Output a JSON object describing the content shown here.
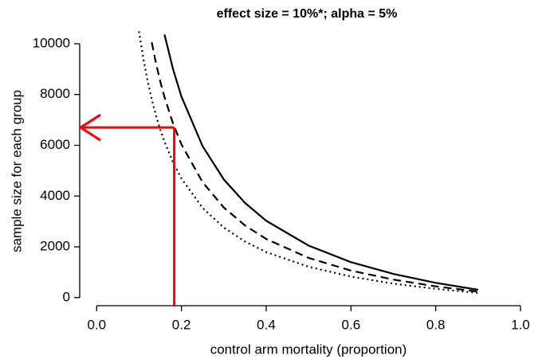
{
  "chart_data": {
    "type": "line",
    "title": "effect size = 10%*; alpha = 5%",
    "xlabel": "control arm mortality (proportion)",
    "ylabel": "sample size for each group",
    "xlim": [
      -0.04,
      1.03
    ],
    "ylim": [
      -350,
      10500
    ],
    "xticks": [
      {
        "value": 0,
        "label": "0.0"
      },
      0.2,
      0.4,
      0.6,
      0.8,
      {
        "value": 1,
        "label": "1.0"
      }
    ],
    "yticks": [
      0,
      2000,
      4000,
      6000,
      8000,
      10000
    ],
    "series": [
      {
        "color": "#000000",
        "linestyle": "solid",
        "x": [
          0.16,
          0.18,
          0.2,
          0.25,
          0.3,
          0.35,
          0.4,
          0.5,
          0.6,
          0.7,
          0.8,
          0.9
        ],
        "values": [
          10362,
          9013,
          7921,
          5964,
          4656,
          3729,
          3028,
          2050,
          1398,
          931,
          582,
          310
        ]
      },
      {
        "color": "#000000",
        "linestyle": "dashed",
        "x": [
          0.13,
          0.14,
          0.15,
          0.16,
          0.18,
          0.2,
          0.25,
          0.3,
          0.35,
          0.4,
          0.5,
          0.6,
          0.7,
          0.8,
          0.9
        ],
        "values": [
          10056,
          9232,
          8525,
          7897,
          6869,
          6037,
          4545,
          3548,
          2842,
          2308,
          1562,
          1065,
          710,
          444,
          236
        ]
      },
      {
        "color": "#000000",
        "linestyle": "dotted",
        "x": [
          0.1,
          0.11,
          0.12,
          0.13,
          0.14,
          0.15,
          0.16,
          0.18,
          0.2,
          0.25,
          0.3,
          0.35,
          0.4,
          0.5,
          0.6,
          0.7,
          0.8,
          0.9
        ],
        "values": [
          10486,
          9431,
          8552,
          7814,
          7174,
          6625,
          6137,
          5338,
          4691,
          3532,
          2757,
          2208,
          1793,
          1214,
          828,
          551,
          345,
          184
        ]
      }
    ],
    "arrow": {
      "x": 0.183,
      "y": 6700,
      "color": "#ff0000"
    }
  }
}
